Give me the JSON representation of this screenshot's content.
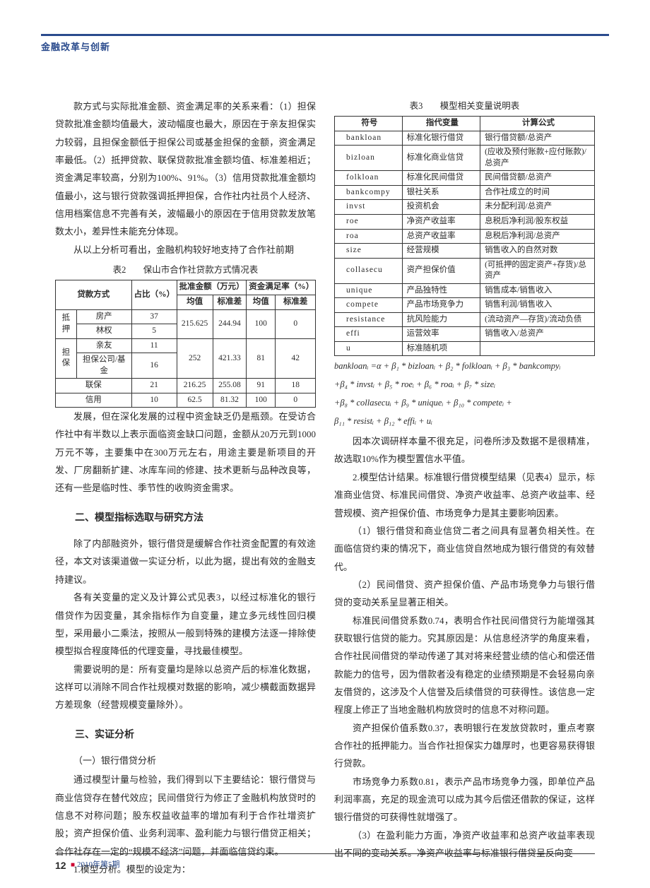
{
  "header": {
    "section": "金融改革与创新"
  },
  "footer": {
    "page": "12",
    "issue": "2010年第5期"
  },
  "col1": {
    "p1": "款方式与实际批准金额、资金满足率的关系来看：（1）担保贷款批准金额均值最大，波动幅度也最大，原因在于亲友担保实力较弱，且担保金额低于担保公司或基金担保的金额，资金满足率最低。（2）抵押贷款、联保贷款批准金额均值、标准差相近；资金满足率较高，分别为100%、91%。（3）信用贷款批准金额均值最小，这与银行贷款强调抵押担保，合作社内社员个人经济、信用档案信息不完善有关，波幅最小的原因在于信用贷款发放笔数太小，差异性未能充分体现。",
    "p2": "从以上分析可看出，金融机构较好地支持了合作社前期",
    "t2cap": "保山市合作社贷款方式情况表",
    "t2no": "表2",
    "t2": {
      "h_method": "贷款方式",
      "h_ratio": "占比（%）",
      "h_amt": "批准金额（万元）",
      "h_sat": "资金满足率（%）",
      "h_mean": "均值",
      "h_std": "标准差",
      "g_diya": "抵押",
      "r_fang": "房产",
      "r_lin": "林权",
      "g_danbao": "担保",
      "r_qinyou": "亲友",
      "r_dbgs": "担保公司/基金",
      "r_lianbao": "联保",
      "r_xinyong": "信用",
      "v_fang_r": "37",
      "v_lin_r": "5",
      "v_dy_m": "215.625",
      "v_dy_s": "244.94",
      "v_dy_sm": "100",
      "v_dy_ss": "0",
      "v_qy_r": "11",
      "v_db_r": "16",
      "v_db_m": "252",
      "v_db_s": "421.33",
      "v_db_sm": "81",
      "v_db_ss": "42",
      "v_lb_r": "21",
      "v_lb_m": "216.25",
      "v_lb_s": "255.08",
      "v_lb_sm": "91",
      "v_lb_ss": "18",
      "v_xy_r": "10",
      "v_xy_m": "62.5",
      "v_xy_s": "81.32",
      "v_xy_sm": "100",
      "v_xy_ss": "0"
    },
    "p3": "发展，但在深化发展的过程中资金缺乏仍是瓶颈。在受访合作社中有半数以上表示面临资金缺口问题，金额从20万元到1000万元不等，主要集中在300万元左右，用途主要是新项目的开发、厂房翻新扩建、冰库车间的修建、技术更新与品种改良等，还有一些是临时性、季节性的收购资金需求。",
    "h2a": "二、模型指标选取与研究方法",
    "p4": "除了内部融资外，银行借贷是缓解合作社资金配置的有效途径，本文对该渠道做一实证分析，以此为据，提出有效的金融支持建议。",
    "p5": "各有关变量的定义及计算公式见表3，以经过标准化的银行借贷作为因变量，其余指标作为自变量，建立多元线性回归模型，采用最小二乘法，按照从一般到特殊的建模方法逐一排除使模型拟合程度降低的代理变量，寻找最佳模型。",
    "p6": "需要说明的是：所有变量均是除以总资产后的标准化数据，这样可以消除不同合作社规模对数据的影响，减少横截面数据异方差现象（经营规模变量除外）。",
    "h2b": "三、实证分析",
    "h3a": "（一）银行借贷分析",
    "p7": "通过模型计量与检验，我们得到以下主要结论：银行借贷与商业信贷存在替代效应；民间借贷行为修正了金融机构放贷时的信息不对称问题；股东权益收益率的增加有利于合作社增资扩股；资产担保价值、业务利润率、盈利能力与银行借贷正相关；合作社存在一定的“规模不经济”问题，并面临信贷约束。",
    "p8": "1.模型分析。模型的设定为："
  },
  "col2": {
    "t3no": "表3",
    "t3cap": "模型相关变量说明表",
    "t3": {
      "h_sym": "符号",
      "h_var": "指代变量",
      "h_calc": "计算公式",
      "rows": [
        {
          "s": "bankloan",
          "v": "标准化银行借贷",
          "c": "银行借贷额/总资产"
        },
        {
          "s": "bizloan",
          "v": "标准化商业信贷",
          "c": "(应收及预付账款+应付账款)/总资产"
        },
        {
          "s": "folkloan",
          "v": "标准化民间借贷",
          "c": "民间借贷额/总资产"
        },
        {
          "s": "bankcompy",
          "v": "银社关系",
          "c": "合作社成立的时间"
        },
        {
          "s": "invst",
          "v": "投资机会",
          "c": "未分配利润/总资产"
        },
        {
          "s": "roe",
          "v": "净资产收益率",
          "c": "息税后净利润/股东权益"
        },
        {
          "s": "roa",
          "v": "总资产收益率",
          "c": "息税后净利润/总资产"
        },
        {
          "s": "size",
          "v": "经营规模",
          "c": "销售收入的自然对数"
        },
        {
          "s": "collasecu",
          "v": "资产担保价值",
          "c": "(可抵押的固定资产+存货)/总资产"
        },
        {
          "s": "unique",
          "v": "产品独特性",
          "c": "销售成本/销售收入"
        },
        {
          "s": "compete",
          "v": "产品市场竞争力",
          "c": "销售利润/销售收入"
        },
        {
          "s": "resistance",
          "v": "抗风险能力",
          "c": "(流动资产—存货)/流动负债"
        },
        {
          "s": "effi",
          "v": "运营效率",
          "c": "销售收入/总资产"
        },
        {
          "s": "u",
          "v": "标准随机项",
          "c": ""
        }
      ]
    },
    "eq1": "bankloanᵢ =α + β₁ * bizloanᵢ + β₂ * folkloanᵢ + β₃ * bankcompyᵢ",
    "eq2": "+β₄ * invstᵢ + β₅ * roeᵢ + β₆ * roaᵢ + β₇ * sizeᵢ",
    "eq3": "+β₈ * collasecuᵢ + β₉ * uniqueᵢ + β₁₀ * competeᵢ +",
    "eq4": "β₁₁ * resistᵢ + β₁₂ * effiᵢ + uᵢ",
    "p1": "因本次调研样本量不很充足，问卷所涉及数据不是很精准，故选取10%作为模型置信水平值。",
    "p2": "2.模型估计结果。标准银行借贷模型结果（见表4）显示，标准商业信贷、标准民间借贷、净资产收益率、总资产收益率、经营规模、资产担保价值、市场竞争力是其主要影响因素。",
    "p3": "（1）银行借贷和商业信贷二者之间具有显著负相关性。在面临信贷约束的情况下，商业信贷自然地成为银行借贷的有效替代。",
    "p4": "（2）民间借贷、资产担保价值、产品市场竞争力与银行借贷的变动关系呈显著正相关。",
    "p5": "标准民间借贷系数0.74，表明合作社民间借贷行为能增强其获取银行信贷的能力。究其原因是：从信息经济学的角度来看，合作社民间借贷的举动传递了其对将来经营业绩的信心和偿还借款能力的信号，因为借款者没有稳定的业绩预期是不会轻易向亲友借贷的，这涉及个人信誉及后续借贷的可获得性。该信息一定程度上修正了当地金融机构放贷时的信息不对称问题。",
    "p6": "资产担保价值系数0.37，表明银行在发放贷款时，重点考察合作社的抵押能力。当合作社担保实力雄厚时，也更容易获得银行贷款。",
    "p7": "市场竞争力系数0.81，表示产品市场竞争力强，即单位产品利润率高，充足的现金流可以成为其今后偿还借款的保证，这样银行借贷的可获得性就增强了。",
    "p8": "（3）在盈利能力方面，净资产收益率和总资产收益率表现出不同的变动关系。净资产收益率与标准银行借贷呈反向变"
  }
}
